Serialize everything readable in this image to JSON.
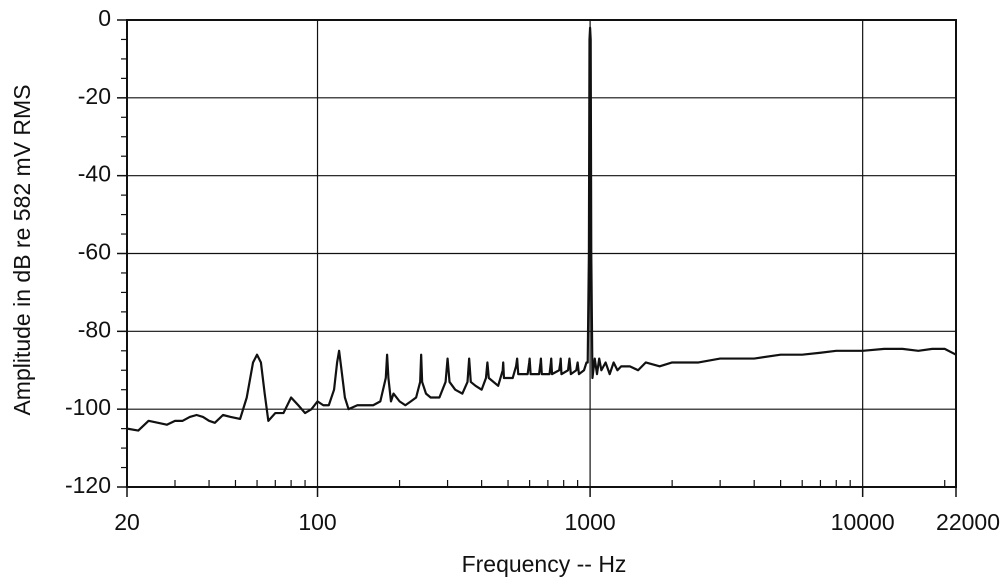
{
  "chart_data": {
    "type": "line",
    "x_label": "Frequency -- Hz",
    "y_label": "Amplitude in dB re 582 mV RMS",
    "x_scale": "log",
    "xlim": [
      20,
      22000
    ],
    "ylim": [
      -120,
      0
    ],
    "xticks": [
      20,
      100,
      1000,
      10000,
      22000
    ],
    "yticks": [
      0,
      -20,
      -40,
      -60,
      -80,
      -100,
      -120
    ],
    "xminorticks": [
      30,
      40,
      50,
      60,
      70,
      80,
      90,
      200,
      300,
      400,
      500,
      600,
      700,
      800,
      900,
      2000,
      3000,
      4000,
      5000,
      6000,
      7000,
      8000,
      9000,
      20000
    ],
    "yminorticks": [
      -5,
      -10,
      -15,
      -25,
      -30,
      -35,
      -45,
      -50,
      -55,
      -65,
      -70,
      -75,
      -85,
      -90,
      -95,
      -105,
      -110,
      -115
    ],
    "grid": true,
    "series": [
      {
        "color": "#111111",
        "x": [
          20,
          22,
          24,
          26,
          28,
          30,
          32,
          34,
          36,
          38,
          40,
          42,
          45,
          48,
          52,
          55,
          58,
          60,
          62,
          64,
          66,
          70,
          75,
          80,
          85,
          90,
          95,
          100,
          105,
          110,
          115,
          118,
          120,
          122,
          126,
          130,
          140,
          150,
          160,
          170,
          178,
          180,
          182,
          186,
          190,
          200,
          210,
          220,
          230,
          238,
          240,
          242,
          250,
          260,
          280,
          295,
          300,
          305,
          320,
          340,
          355,
          360,
          365,
          380,
          400,
          415,
          420,
          425,
          460,
          478,
          480,
          483,
          520,
          535,
          540,
          545,
          590,
          598,
          600,
          605,
          650,
          658,
          660,
          665,
          710,
          718,
          720,
          725,
          770,
          778,
          780,
          785,
          830,
          840,
          850,
          890,
          900,
          910,
          950,
          970,
          980,
          990,
          995,
          1000,
          1005,
          1010,
          1020,
          1040,
          1060,
          1080,
          1100,
          1140,
          1180,
          1220,
          1260,
          1300,
          1400,
          1500,
          1600,
          1800,
          2000,
          2200,
          2500,
          3000,
          3500,
          4000,
          5000,
          6000,
          7000,
          8000,
          9000,
          10000,
          12000,
          14000,
          16000,
          18000,
          20000,
          22000
        ],
        "values": [
          -105,
          -105.5,
          -103,
          -103.5,
          -104,
          -103,
          -103,
          -102,
          -101.5,
          -102,
          -103,
          -103.5,
          -101.5,
          -102,
          -102.5,
          -97,
          -88,
          -86,
          -88,
          -96,
          -103,
          -101,
          -101,
          -97,
          -99,
          -101,
          -100,
          -98,
          -99,
          -99,
          -95,
          -88,
          -85,
          -89,
          -97,
          -100,
          -99,
          -99,
          -99,
          -98,
          -92,
          -86,
          -92,
          -98,
          -96,
          -98,
          -99,
          -98,
          -97,
          -93,
          -86,
          -93,
          -96,
          -97,
          -97,
          -93,
          -87,
          -93,
          -95,
          -96,
          -93,
          -87,
          -93,
          -94,
          -95,
          -92,
          -88,
          -92,
          -94,
          -90,
          -88,
          -92,
          -92,
          -89,
          -87,
          -91,
          -91,
          -88,
          -87,
          -91,
          -91,
          -88,
          -87,
          -91,
          -91,
          -88,
          -87,
          -91,
          -90,
          -88,
          -87,
          -91,
          -90,
          -87,
          -91,
          -90,
          -88,
          -91,
          -90,
          -88,
          -88,
          -60,
          -5,
          -2,
          -5,
          -60,
          -92,
          -87,
          -91,
          -87,
          -90,
          -88,
          -91,
          -88,
          -90,
          -89,
          -89,
          -90,
          -88,
          -89,
          -88,
          -88,
          -88,
          -87,
          -87,
          -87,
          -86,
          -86,
          -85.5,
          -85,
          -85,
          -85,
          -84.5,
          -84.5,
          -85,
          -84.5,
          -84.5,
          -86
        ]
      }
    ]
  }
}
